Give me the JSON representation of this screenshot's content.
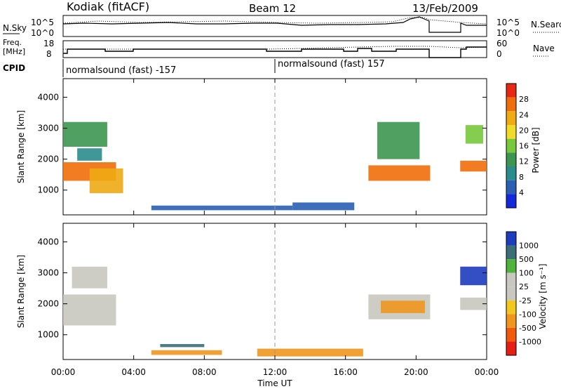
{
  "header": {
    "title": "Kodiak (fitACF)",
    "beam": "Beam 12",
    "date": "13/Feb/2009"
  },
  "noise_panel": {
    "left_label": "N.Sky",
    "left_ticks": [
      "10^5",
      "10^0"
    ],
    "right_ticks": [
      "10^5",
      "10^0"
    ],
    "right_label": "N.Search"
  },
  "freq_panel": {
    "left_label_1": "Freq.",
    "left_label_2": "[MHz]",
    "left_ticks": [
      "18",
      "8"
    ],
    "right_ticks": [
      "60",
      "0"
    ],
    "right_label": "Nave"
  },
  "cpid_panel": {
    "label": "CPID",
    "segments": [
      {
        "text": "normalsound (fast) -157",
        "start_hour": 0
      },
      {
        "text": "normalsound (fast) 157",
        "start_hour": 12
      }
    ]
  },
  "x_axis": {
    "label": "Time UT",
    "ticks": [
      "00:00",
      "04:00",
      "08:00",
      "12:00",
      "16:00",
      "20:00",
      "00:00"
    ]
  },
  "colors": {
    "power_scale": [
      "#1428dc",
      "#2a5fb4",
      "#2a8c8c",
      "#3c9650",
      "#78c83c",
      "#f0dc28",
      "#f0aa14",
      "#f06e0a",
      "#e62814"
    ],
    "velocity_scale": [
      "#e61e14",
      "#f05a0a",
      "#f0961e",
      "#f0c81e",
      "#c8c8c0",
      "#c8c8c0",
      "#50b43c",
      "#3c6e78",
      "#1e3cbe"
    ]
  },
  "chart_data": [
    {
      "type": "heatmap",
      "name": "power",
      "x_unit": "hour UT",
      "ylabel": "Slant Range [km]",
      "yticks": [
        1000,
        2000,
        3000,
        4000
      ],
      "ylim": [
        200,
        4600
      ],
      "xlim": [
        0,
        24
      ],
      "colorbar": {
        "label": "Power [dB]",
        "ticks": [
          "4",
          "8",
          "12",
          "16",
          "20",
          "24",
          "28"
        ],
        "range": [
          0,
          30
        ]
      },
      "regions": [
        {
          "x": [
            0.0,
            2.5
          ],
          "y": [
            2400,
            3200
          ],
          "value": 10
        },
        {
          "x": [
            0.0,
            3.0
          ],
          "y": [
            1300,
            1900
          ],
          "value": 26
        },
        {
          "x": [
            1.5,
            3.4
          ],
          "y": [
            900,
            1700
          ],
          "value": 22
        },
        {
          "x": [
            0.8,
            2.2
          ],
          "y": [
            1950,
            2350
          ],
          "value": 8
        },
        {
          "x": [
            5.0,
            13.0
          ],
          "y": [
            350,
            500
          ],
          "value": 4
        },
        {
          "x": [
            13.0,
            16.5
          ],
          "y": [
            350,
            600
          ],
          "value": 6
        },
        {
          "x": [
            17.3,
            20.8
          ],
          "y": [
            1300,
            1800
          ],
          "value": 26
        },
        {
          "x": [
            17.8,
            20.2
          ],
          "y": [
            2000,
            3200
          ],
          "value": 12
        },
        {
          "x": [
            22.5,
            24.0
          ],
          "y": [
            1600,
            1950
          ],
          "value": 24
        },
        {
          "x": [
            22.8,
            23.8
          ],
          "y": [
            2500,
            3100
          ],
          "value": 14
        }
      ]
    },
    {
      "type": "heatmap",
      "name": "velocity",
      "x_unit": "hour UT",
      "ylabel": "Slant Range [km]",
      "yticks": [
        1000,
        2000,
        3000,
        4000
      ],
      "ylim": [
        200,
        4600
      ],
      "xlim": [
        0,
        24
      ],
      "colorbar": {
        "label": "Velocity [m s⁻¹]",
        "ticks": [
          "1000",
          "500",
          "100",
          "25",
          "-25",
          "-100",
          "-500",
          "-1000"
        ]
      },
      "regions": [
        {
          "x": [
            0.0,
            3.0
          ],
          "y": [
            1300,
            2300
          ],
          "value": 0
        },
        {
          "x": [
            0.5,
            2.5
          ],
          "y": [
            2500,
            3200
          ],
          "value": 0
        },
        {
          "x": [
            5.0,
            9.0
          ],
          "y": [
            350,
            500
          ],
          "value": -150
        },
        {
          "x": [
            5.5,
            8.0
          ],
          "y": [
            600,
            700
          ],
          "value": 150
        },
        {
          "x": [
            11.0,
            17.0
          ],
          "y": [
            300,
            550
          ],
          "value": -150
        },
        {
          "x": [
            17.3,
            20.8
          ],
          "y": [
            1500,
            2300
          ],
          "value": 0
        },
        {
          "x": [
            18.0,
            20.5
          ],
          "y": [
            1700,
            2100
          ],
          "value": -150
        },
        {
          "x": [
            22.5,
            24.0
          ],
          "y": [
            2600,
            3200
          ],
          "value": 800
        },
        {
          "x": [
            22.5,
            24.0
          ],
          "y": [
            1800,
            2200
          ],
          "value": 0
        }
      ]
    }
  ]
}
